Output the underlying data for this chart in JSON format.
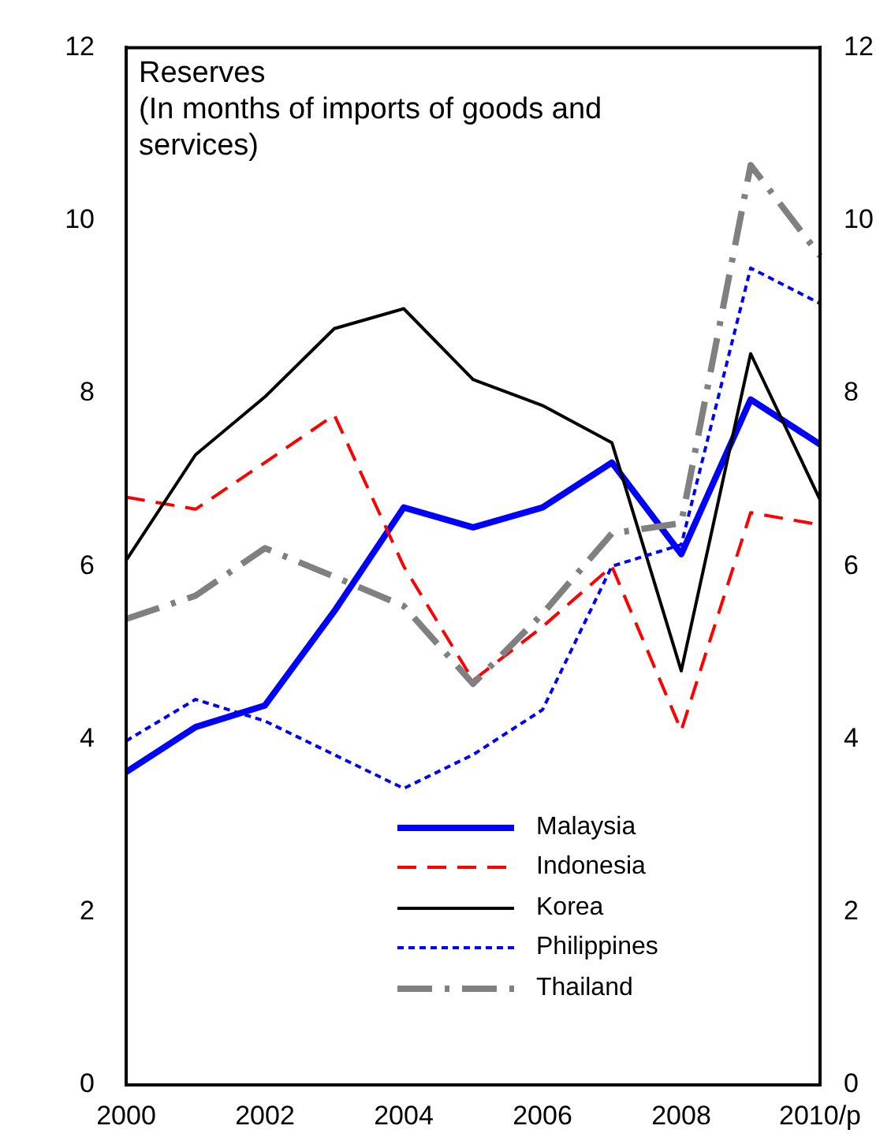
{
  "chart_data": {
    "type": "line",
    "title": "Reserves",
    "subtitle": "(In months of imports of goods and services)",
    "categories": [
      "2000",
      null,
      "2002",
      null,
      "2004",
      null,
      "2006",
      null,
      "2008",
      null,
      "2010/p"
    ],
    "series": [
      {
        "name": "Malaysia",
        "color": "#0000ff",
        "line_style": "solid",
        "values": [
          3.62,
          4.14,
          4.39,
          5.48,
          6.68,
          6.45,
          6.68,
          7.2,
          6.14,
          7.93,
          7.41
        ]
      },
      {
        "name": "Indonesia",
        "color": "#ff0000",
        "line_style": "dashed",
        "values": [
          6.8,
          6.66,
          7.2,
          7.75,
          6.0,
          4.68,
          5.3,
          6.0,
          4.1,
          6.62,
          6.48
        ]
      },
      {
        "name": "Korea",
        "color": "#000000",
        "line_style": "solid",
        "values": [
          6.07,
          7.29,
          7.96,
          8.75,
          8.98,
          8.16,
          7.86,
          7.43,
          4.79,
          8.46,
          6.77
        ]
      },
      {
        "name": "Philippines",
        "color": "#0000ff",
        "line_style": "dotted",
        "values": [
          3.98,
          4.46,
          4.21,
          3.82,
          3.43,
          3.82,
          4.34,
          6.0,
          6.25,
          9.45,
          9.04
        ]
      },
      {
        "name": "Thailand",
        "color": "#808080",
        "line_style": "dashdot",
        "values": [
          5.39,
          5.66,
          6.21,
          5.88,
          5.54,
          4.64,
          5.45,
          6.38,
          6.5,
          10.64,
          9.59
        ]
      }
    ],
    "ylim": [
      0,
      12
    ],
    "yticks": [
      0,
      2,
      4,
      6,
      8,
      10,
      12
    ],
    "y2lim": [
      0,
      12
    ],
    "y2ticks": [
      0,
      2,
      4,
      6,
      8,
      10,
      12
    ],
    "grid": false,
    "legend": "bottom right",
    "marker": "none"
  }
}
